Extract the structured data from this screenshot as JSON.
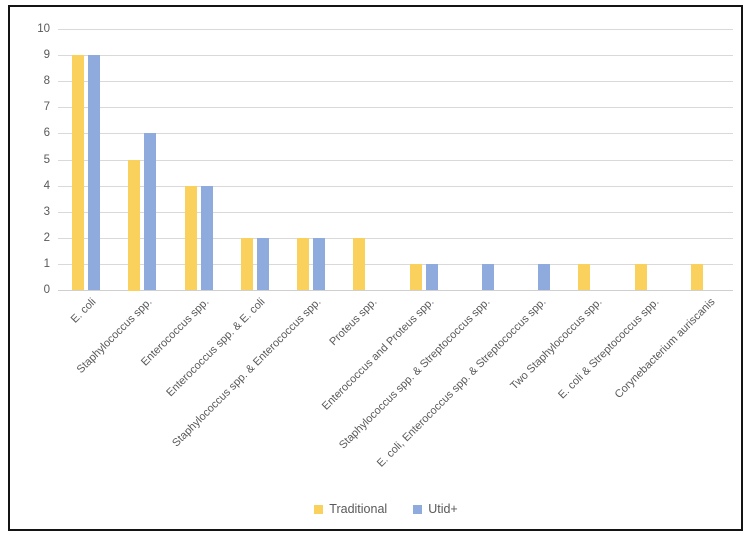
{
  "colors": {
    "traditional": "#FAD15C",
    "utid_plus": "#8FAADC",
    "gridline": "#D9D9D9",
    "axis_baseline": "#CFCFCF",
    "tick_text": "#595959",
    "frame_border": "#141414",
    "background": "#FFFFFF"
  },
  "legend": {
    "items": [
      {
        "label": "Traditional",
        "color": "#FAD15C"
      },
      {
        "label": "Utid+",
        "color": "#8FAADC"
      }
    ]
  },
  "chart_data": {
    "type": "bar",
    "title": "",
    "xlabel": "",
    "ylabel": "",
    "categories": [
      "E. coli",
      "Staphylococcus spp.",
      "Enterococcus spp.",
      "Enterococcus spp. & E. coli",
      "Staphylococcus spp. & Enterococcus spp.",
      "Proteus spp.",
      "Enterococcus and Proteus spp.",
      "Staphylococcus spp. & Streptococcus spp.",
      "E. coli, Enterococcus spp. & Streptococcus spp.",
      "Two Staphylococcus spp.",
      "E. coli & Streptococcus spp.",
      "Corynebacterium auriscanis"
    ],
    "series": [
      {
        "name": "Traditional",
        "color": "#FAD15C",
        "values": [
          9,
          5,
          4,
          2,
          2,
          2,
          1,
          0,
          0,
          1,
          1,
          1
        ]
      },
      {
        "name": "Utid+",
        "color": "#8FAADC",
        "values": [
          9,
          6,
          4,
          2,
          2,
          0,
          1,
          1,
          1,
          0,
          0,
          0
        ]
      }
    ],
    "ylim": [
      0,
      10
    ],
    "yticks": [
      0,
      1,
      2,
      3,
      4,
      5,
      6,
      7,
      8,
      9,
      10
    ],
    "grid": true,
    "legend_position": "bottom"
  }
}
